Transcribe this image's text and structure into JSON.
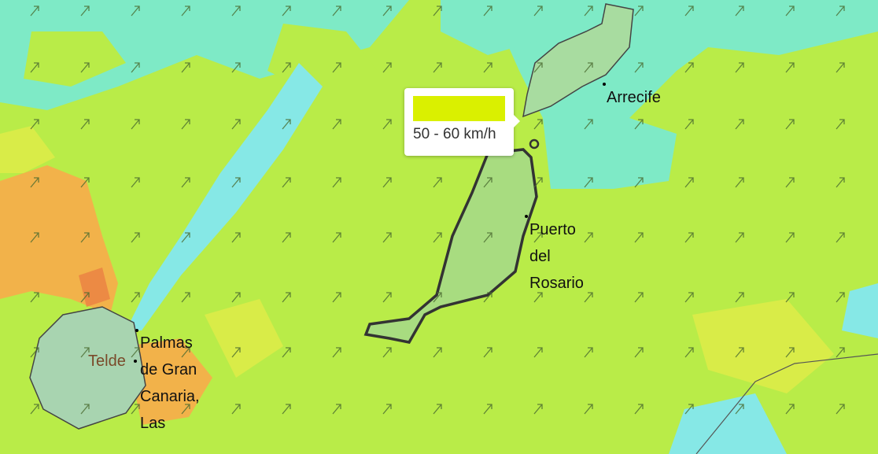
{
  "map": {
    "layer": "wind speed",
    "colors": {
      "base": "#b9ec48",
      "cyan": "#7eeac6",
      "aqua": "#86e8e6",
      "yellow": "#d9ec48",
      "orange": "#f2b24a",
      "red": "#ec8a44",
      "coast": "#333333"
    },
    "arrow_icon": "wind-direction-arrow-northeast"
  },
  "cities": [
    {
      "name": "Arrecife"
    },
    {
      "name": "Puerto\ndel\nRosario"
    },
    {
      "name": "Palmas\nde Gran\nCanaria,\nLas"
    },
    {
      "name": "Telde"
    }
  ],
  "tooltip": {
    "color": "#daf000",
    "label": "50 - 60 km/h"
  }
}
